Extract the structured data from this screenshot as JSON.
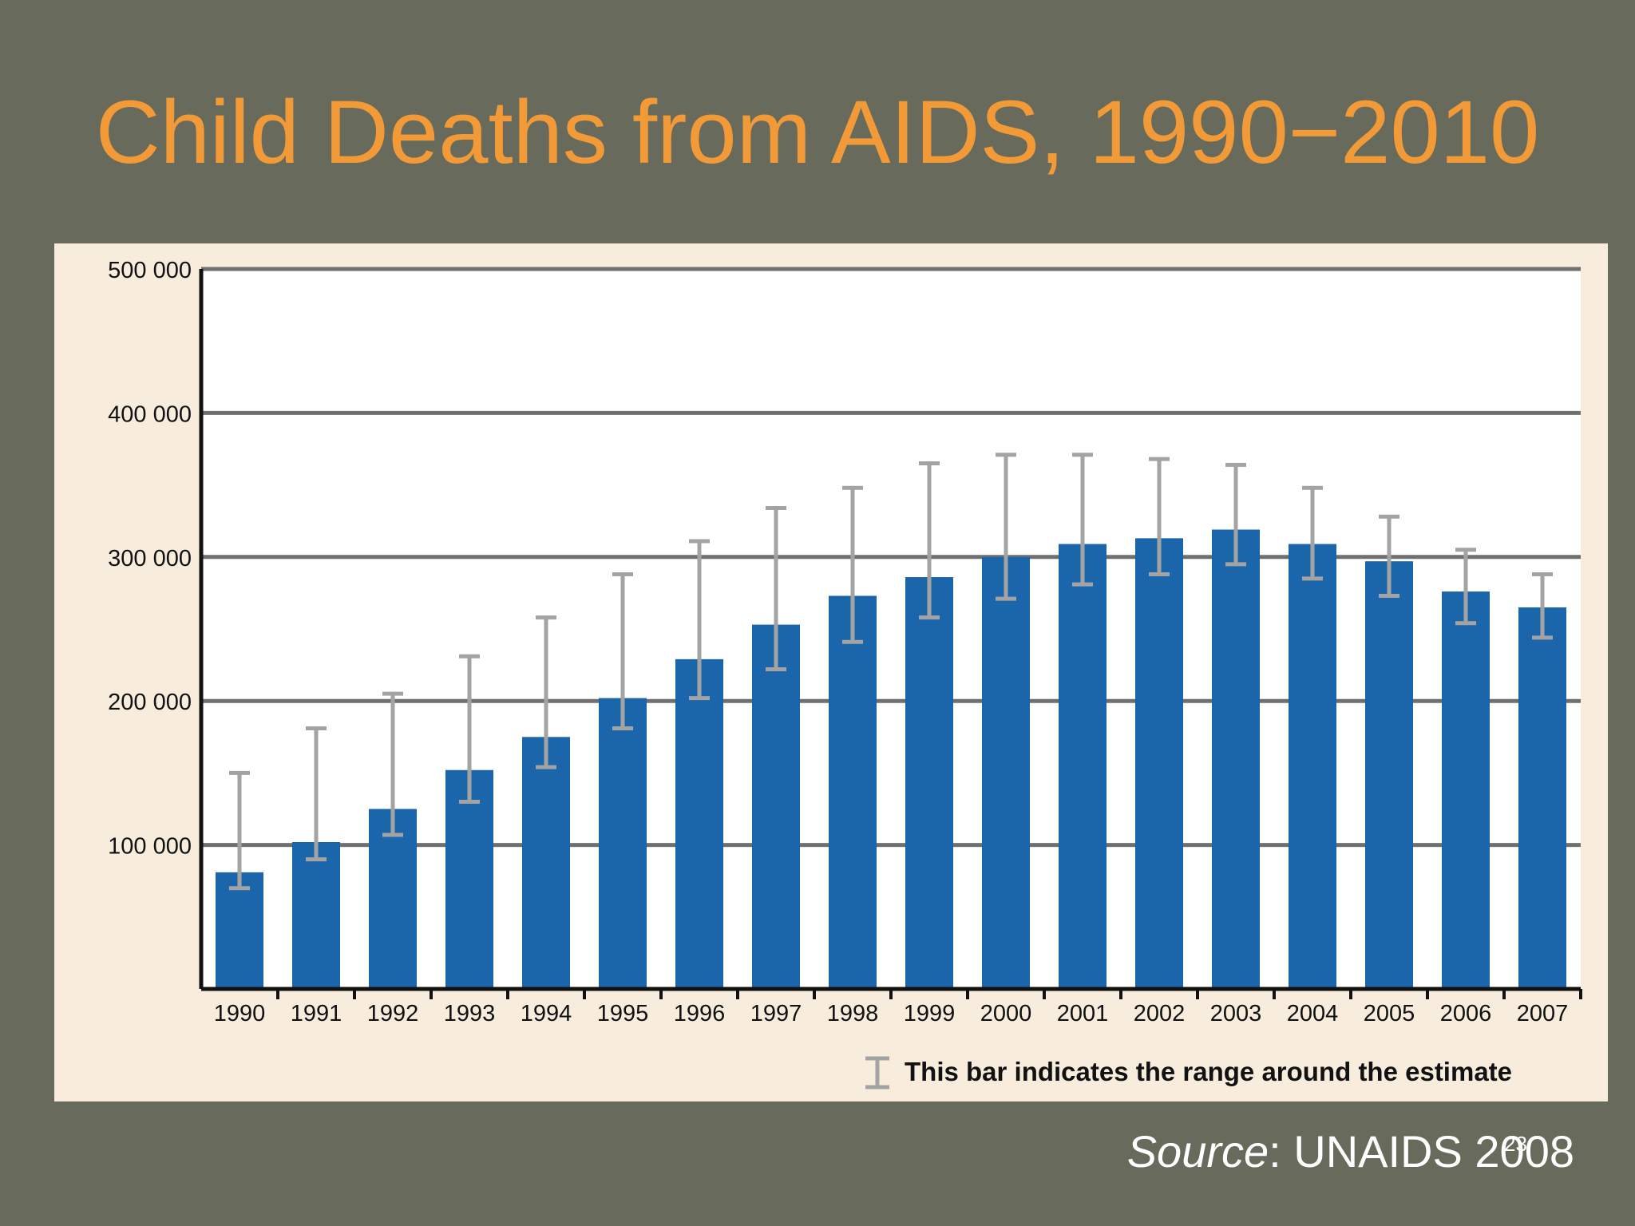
{
  "slide": {
    "title": "Child Deaths from AIDS, 1990−2010",
    "source_label": "Source",
    "source_separator": ": ",
    "source_value": "UNAIDS 2008",
    "page_number": "23"
  },
  "colors": {
    "background": "#686b5b",
    "title": "#f29a38",
    "panel": "#f8eddd",
    "plot": "#ffffff",
    "bar": "#1b65aa",
    "error_bar": "#a3a3a3",
    "grid": "#707070",
    "axis": "#111111",
    "text": "#111111",
    "source_text": "#ffffff"
  },
  "chart_data": {
    "type": "bar",
    "categories": [
      "1990",
      "1991",
      "1992",
      "1993",
      "1994",
      "1995",
      "1996",
      "1997",
      "1998",
      "1999",
      "2000",
      "2001",
      "2002",
      "2003",
      "2004",
      "2005",
      "2006",
      "2007"
    ],
    "y_ticks": [
      100000,
      200000,
      300000,
      400000,
      500000
    ],
    "y_tick_labels": [
      "100 000",
      "200 000",
      "300 000",
      "400 000",
      "500 000"
    ],
    "ylim": [
      0,
      500000
    ],
    "grid": true,
    "series": [
      {
        "values": [
          81000,
          102000,
          125000,
          152000,
          175000,
          202000,
          229000,
          253000,
          273000,
          286000,
          300000,
          309000,
          313000,
          319000,
          309000,
          297000,
          276000,
          265000
        ],
        "lower": [
          70000,
          90000,
          107000,
          130000,
          154000,
          181000,
          202000,
          222000,
          241000,
          258000,
          271000,
          281000,
          288000,
          295000,
          285000,
          273000,
          254000,
          244000
        ],
        "upper": [
          150000,
          181000,
          205000,
          231000,
          258000,
          288000,
          311000,
          334000,
          348000,
          365000,
          371000,
          371000,
          368000,
          364000,
          348000,
          328000,
          305000,
          288000
        ]
      }
    ],
    "legend": {
      "position": "bottom-right",
      "label": "This bar indicates the range around the estimate",
      "symbol": "error-bar"
    }
  }
}
